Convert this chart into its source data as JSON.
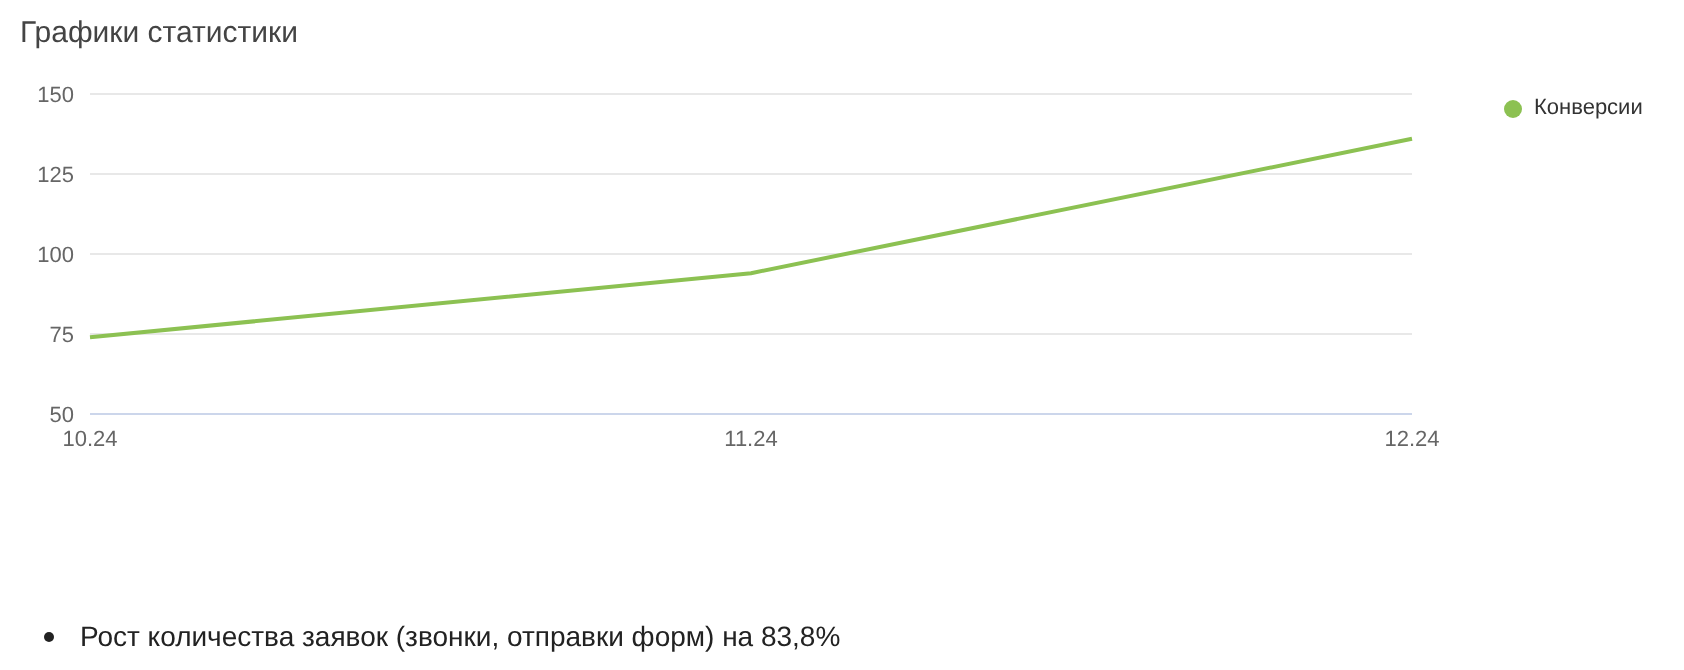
{
  "chart_data": {
    "type": "line",
    "title": "Графики статистики",
    "categories": [
      "10.24",
      "11.24",
      "12.24"
    ],
    "series": [
      {
        "name": "Конверсии",
        "color": "#8cc152",
        "values": [
          74,
          94,
          136
        ]
      }
    ],
    "ylim": [
      50,
      150
    ],
    "yticks": [
      50,
      75,
      100,
      125,
      150
    ],
    "grid": "y",
    "legend": "top right",
    "marker": "none",
    "line_style": "solid",
    "annotations": [
      "Рост количества заявок (звонки, отправки форм) на 83,8%"
    ]
  }
}
